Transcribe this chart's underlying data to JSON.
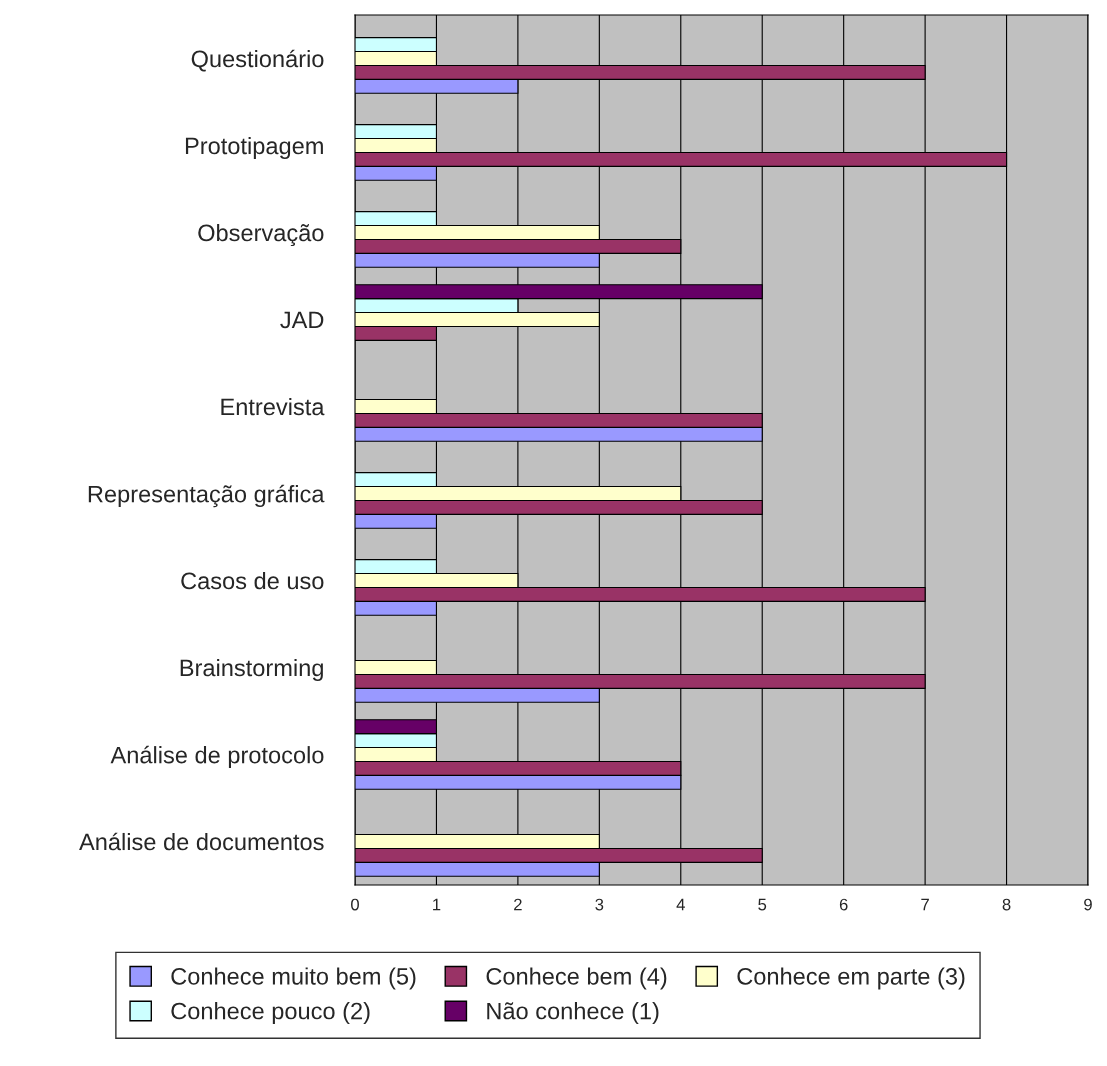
{
  "chart_data": {
    "type": "bar",
    "orientation": "horizontal",
    "categories": [
      "Questionário",
      "Prototipagem",
      "Observação",
      "JAD",
      "Entrevista",
      "Representação gráfica",
      "Casos de uso",
      "Brainstorming",
      "Análise de protocolo",
      "Análise de documentos"
    ],
    "series": [
      {
        "name": "Conhece muito bem (5)",
        "color": "#9999ff",
        "values": [
          2,
          1,
          3,
          null,
          5,
          1,
          1,
          3,
          4,
          3
        ]
      },
      {
        "name": "Conhece bem (4)",
        "color": "#993366",
        "values": [
          7,
          8,
          4,
          1,
          5,
          5,
          7,
          7,
          4,
          5
        ]
      },
      {
        "name": "Conhece em parte (3)",
        "color": "#ffffcc",
        "values": [
          1,
          1,
          3,
          3,
          1,
          4,
          2,
          1,
          1,
          3
        ]
      },
      {
        "name": "Conhece pouco (2)",
        "color": "#ccffff",
        "values": [
          1,
          1,
          1,
          2,
          null,
          1,
          1,
          null,
          1,
          null
        ]
      },
      {
        "name": "Não conhece (1)",
        "color": "#660066",
        "values": [
          null,
          null,
          null,
          5,
          null,
          null,
          null,
          null,
          1,
          null
        ]
      }
    ],
    "xlim": [
      0,
      9
    ],
    "xticks": [
      0,
      1,
      2,
      3,
      4,
      5,
      6,
      7,
      8,
      9
    ],
    "grid": "x",
    "legend": "bottom"
  }
}
